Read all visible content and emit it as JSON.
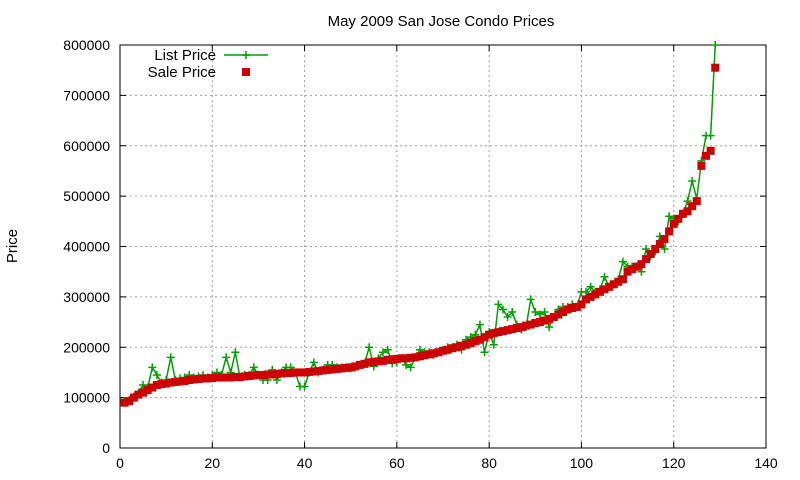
{
  "chart_data": {
    "type": "line",
    "title": "May 2009 San Jose Condo Prices",
    "xlabel": "",
    "ylabel": "Price",
    "xlim": [
      0,
      140
    ],
    "ylim": [
      0,
      800000
    ],
    "xticks": [
      0,
      20,
      40,
      60,
      80,
      100,
      120,
      140
    ],
    "yticks": [
      0,
      100000,
      200000,
      300000,
      400000,
      500000,
      600000,
      700000,
      800000
    ],
    "grid": true,
    "legend_position": "top-left",
    "series": [
      {
        "name": "List Price",
        "style": "line-plus",
        "color": "#00a000",
        "x": [
          1,
          2,
          3,
          4,
          5,
          6,
          7,
          8,
          9,
          10,
          11,
          12,
          13,
          14,
          15,
          16,
          17,
          18,
          19,
          20,
          21,
          22,
          23,
          24,
          25,
          26,
          27,
          28,
          29,
          30,
          31,
          32,
          33,
          34,
          35,
          36,
          37,
          38,
          39,
          40,
          41,
          42,
          43,
          44,
          45,
          46,
          47,
          48,
          49,
          50,
          51,
          52,
          53,
          54,
          55,
          56,
          57,
          58,
          59,
          60,
          61,
          62,
          63,
          64,
          65,
          66,
          67,
          68,
          69,
          70,
          71,
          72,
          73,
          74,
          75,
          76,
          77,
          78,
          79,
          80,
          81,
          82,
          83,
          84,
          85,
          86,
          87,
          88,
          89,
          90,
          91,
          92,
          93,
          94,
          95,
          96,
          97,
          98,
          99,
          100,
          101,
          102,
          103,
          104,
          105,
          106,
          107,
          108,
          109,
          110,
          111,
          112,
          113,
          114,
          115,
          116,
          117,
          118,
          119,
          120,
          121,
          122,
          123,
          124,
          125,
          126,
          127,
          128,
          129
        ],
        "values": [
          93000,
          95000,
          102000,
          110000,
          125000,
          120000,
          160000,
          145000,
          130000,
          135000,
          180000,
          135000,
          138000,
          140000,
          145000,
          140000,
          142000,
          145000,
          140000,
          145000,
          150000,
          145000,
          180000,
          150000,
          190000,
          140000,
          145000,
          145000,
          160000,
          145000,
          135000,
          135000,
          155000,
          135000,
          150000,
          160000,
          160000,
          150000,
          122000,
          122000,
          150000,
          170000,
          150000,
          155000,
          165000,
          165000,
          160000,
          160000,
          160000,
          158000,
          160000,
          165000,
          168000,
          200000,
          162000,
          178000,
          190000,
          195000,
          168000,
          170000,
          178000,
          165000,
          160000,
          180000,
          195000,
          190000,
          190000,
          185000,
          190000,
          195000,
          200000,
          200000,
          205000,
          195000,
          215000,
          220000,
          225000,
          245000,
          190000,
          230000,
          205000,
          285000,
          275000,
          260000,
          270000,
          245000,
          235000,
          240000,
          295000,
          270000,
          265000,
          270000,
          240000,
          260000,
          275000,
          280000,
          280000,
          285000,
          280000,
          310000,
          310000,
          320000,
          310000,
          315000,
          340000,
          320000,
          325000,
          335000,
          370000,
          360000,
          360000,
          360000,
          350000,
          395000,
          380000,
          390000,
          420000,
          395000,
          460000,
          455000,
          450000,
          465000,
          490000,
          530000,
          495000,
          570000,
          620000,
          620000,
          800000
        ]
      },
      {
        "name": "Sale Price",
        "style": "square",
        "color": "#cc0000",
        "x": [
          1,
          2,
          3,
          4,
          5,
          6,
          7,
          8,
          9,
          10,
          11,
          12,
          13,
          14,
          15,
          16,
          17,
          18,
          19,
          20,
          21,
          22,
          23,
          24,
          25,
          26,
          27,
          28,
          29,
          30,
          31,
          32,
          33,
          34,
          35,
          36,
          37,
          38,
          39,
          40,
          41,
          42,
          43,
          44,
          45,
          46,
          47,
          48,
          49,
          50,
          51,
          52,
          53,
          54,
          55,
          56,
          57,
          58,
          59,
          60,
          61,
          62,
          63,
          64,
          65,
          66,
          67,
          68,
          69,
          70,
          71,
          72,
          73,
          74,
          75,
          76,
          77,
          78,
          79,
          80,
          81,
          82,
          83,
          84,
          85,
          86,
          87,
          88,
          89,
          90,
          91,
          92,
          93,
          94,
          95,
          96,
          97,
          98,
          99,
          100,
          101,
          102,
          103,
          104,
          105,
          106,
          107,
          108,
          109,
          110,
          111,
          112,
          113,
          114,
          115,
          116,
          117,
          118,
          119,
          120,
          121,
          122,
          123,
          124,
          125,
          126,
          127,
          128,
          129
        ],
        "values": [
          90000,
          93000,
          100000,
          106000,
          110000,
          115000,
          120000,
          125000,
          127000,
          128000,
          130000,
          131000,
          132000,
          133000,
          135000,
          136000,
          137000,
          138000,
          138000,
          139000,
          140000,
          140000,
          140000,
          140000,
          141000,
          141000,
          142000,
          143000,
          144000,
          145000,
          145000,
          146000,
          146000,
          147000,
          148000,
          149000,
          149000,
          150000,
          150000,
          150000,
          151000,
          152000,
          153000,
          154000,
          155000,
          156000,
          157000,
          158000,
          159000,
          160000,
          162000,
          165000,
          167000,
          170000,
          171000,
          172000,
          173000,
          175000,
          176000,
          177000,
          178000,
          178000,
          179000,
          180000,
          182000,
          184000,
          186000,
          188000,
          190000,
          193000,
          195000,
          198000,
          200000,
          203000,
          205000,
          208000,
          212000,
          215000,
          220000,
          225000,
          228000,
          230000,
          232000,
          234000,
          236000,
          238000,
          240000,
          243000,
          245000,
          248000,
          250000,
          253000,
          256000,
          260000,
          265000,
          270000,
          275000,
          278000,
          280000,
          285000,
          295000,
          300000,
          305000,
          310000,
          315000,
          320000,
          325000,
          330000,
          335000,
          350000,
          355000,
          360000,
          365000,
          375000,
          385000,
          395000,
          405000,
          415000,
          430000,
          445000,
          455000,
          465000,
          470000,
          480000,
          490000,
          560000,
          580000,
          590000,
          755000
        ]
      }
    ]
  }
}
